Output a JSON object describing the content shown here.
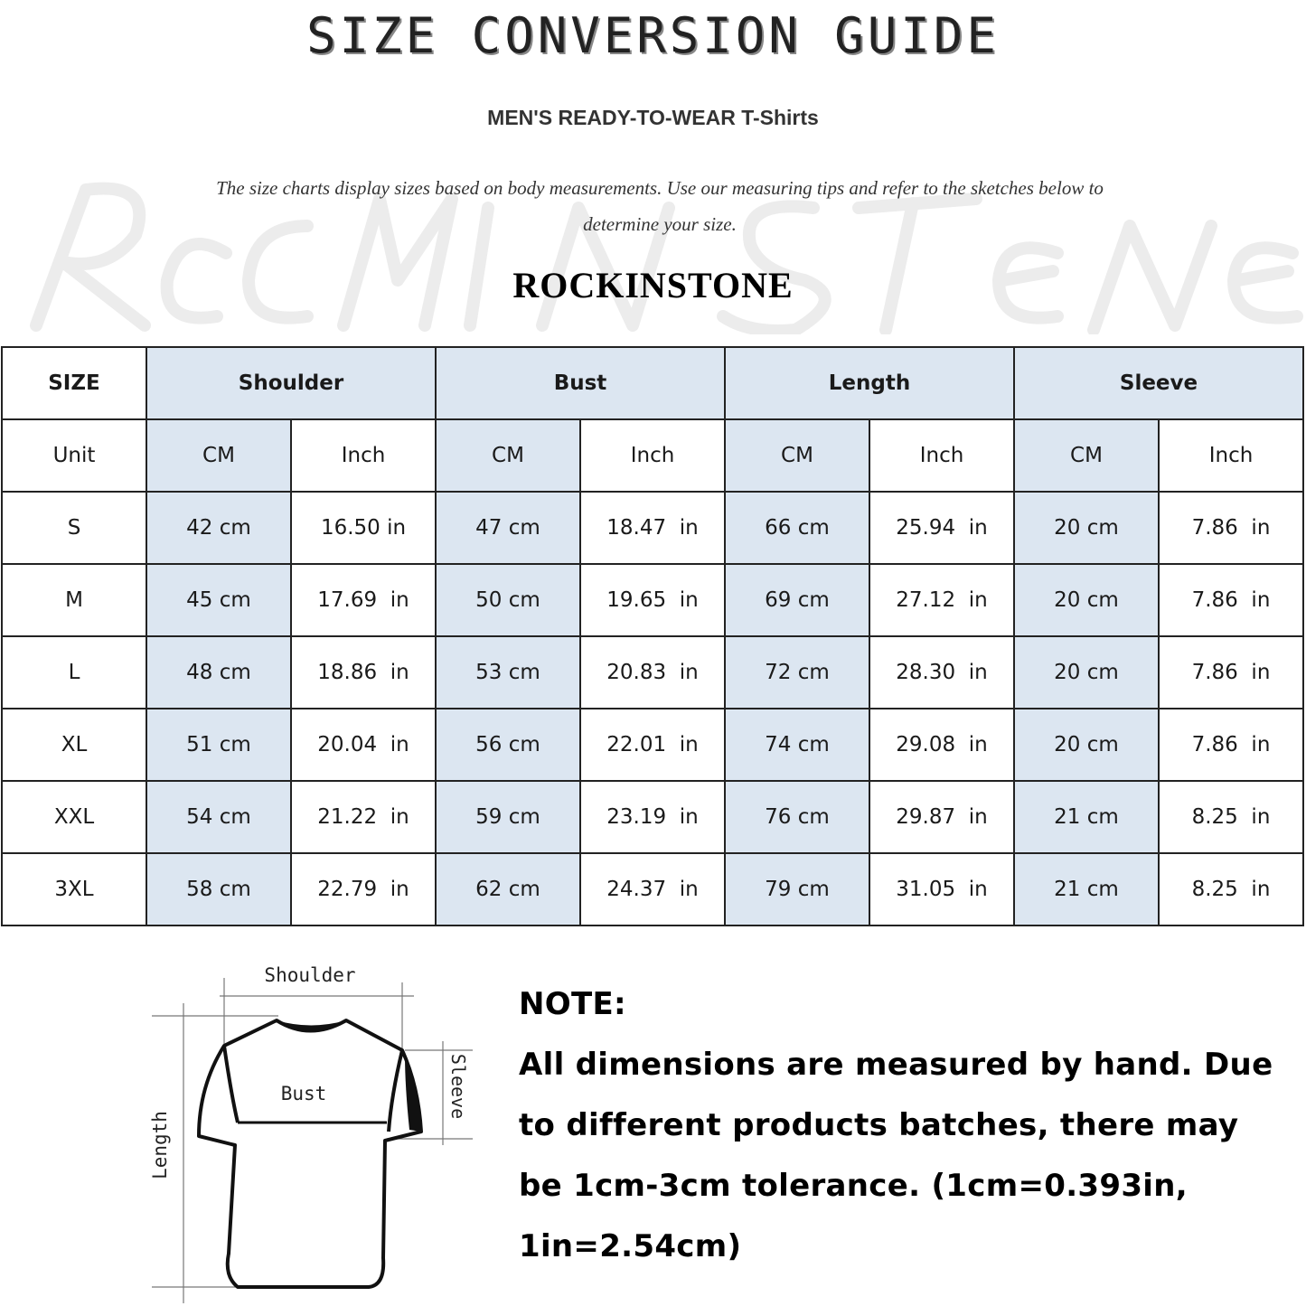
{
  "header": {
    "title": "SIZE CONVERSION GUIDE",
    "subtitle": "MEN'S READY-TO-WEAR T-Shirts",
    "description": "The size charts display sizes based on body measurements. Use our measuring tips and refer to the sketches below to determine your size.",
    "brand": "ROCKINSTONE",
    "watermark": "RockInStone"
  },
  "table": {
    "size_label": "SIZE",
    "unit_label": "Unit",
    "groups": [
      "Shoulder",
      "Bust",
      "Length",
      "Sleeve"
    ],
    "units": [
      "CM",
      "Inch",
      "CM",
      "Inch",
      "CM",
      "Inch",
      "CM",
      "Inch"
    ],
    "rows": [
      {
        "size": "S",
        "values": [
          "42 cm",
          "16.50 in",
          "47 cm",
          "18.47  in",
          "66 cm",
          "25.94  in",
          "20 cm",
          "7.86  in"
        ]
      },
      {
        "size": "M",
        "values": [
          "45 cm",
          "17.69  in",
          "50 cm",
          "19.65  in",
          "69 cm",
          "27.12  in",
          "20 cm",
          "7.86  in"
        ]
      },
      {
        "size": "L",
        "values": [
          "48 cm",
          "18.86  in",
          "53 cm",
          "20.83  in",
          "72 cm",
          "28.30  in",
          "20 cm",
          "7.86  in"
        ]
      },
      {
        "size": "XL",
        "values": [
          "51 cm",
          "20.04  in",
          "56 cm",
          "22.01  in",
          "74 cm",
          "29.08  in",
          "20 cm",
          "7.86  in"
        ]
      },
      {
        "size": "XXL",
        "values": [
          "54 cm",
          "21.22  in",
          "59 cm",
          "23.19  in",
          "76 cm",
          "29.87  in",
          "21 cm",
          "8.25  in"
        ]
      },
      {
        "size": "3XL",
        "values": [
          "58 cm",
          "22.79  in",
          "62 cm",
          "24.37  in",
          "79 cm",
          "31.05  in",
          "21 cm",
          "8.25  in"
        ]
      }
    ],
    "header_fill": "#dce6f1"
  },
  "diagram": {
    "shoulder": "Shoulder",
    "bust": "Bust",
    "sleeve": "Sleeve",
    "length": "Length"
  },
  "note": {
    "title": "NOTE:",
    "text": "All dimensions are measured by hand. Due to different products batches, there may be 1cm-3cm tolerance. (1cm=0.393in, 1in=2.54cm)"
  }
}
